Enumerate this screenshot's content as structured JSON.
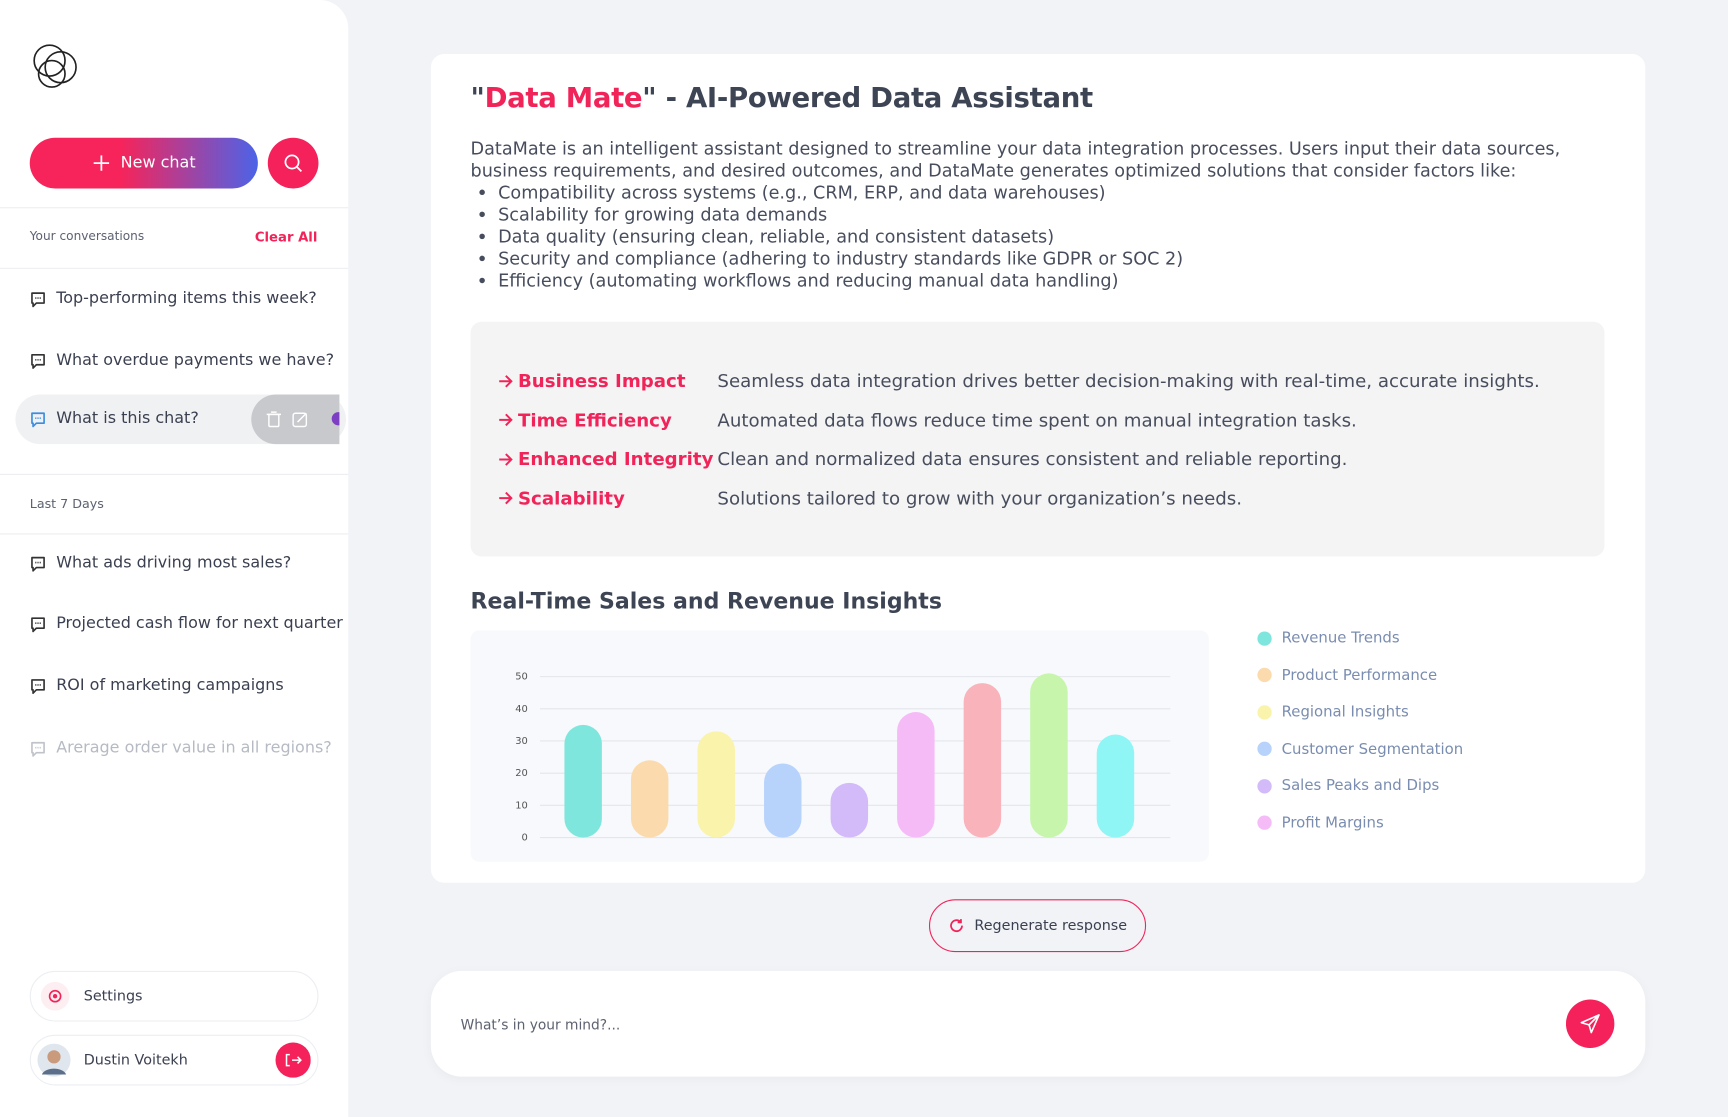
{
  "sidebar": {
    "new_chat": "New chat",
    "conversations_label": "Your conversations",
    "clear_all": "Clear All",
    "conversations": [
      "Top-performing items this week?",
      "What overdue payments we have?",
      "What is this chat?"
    ],
    "last7_label": "Last 7 Days",
    "last7": [
      "What ads driving most sales?",
      "Projected cash flow for next quarter",
      "ROI of marketing campaigns",
      "Arerage order value in all regions?"
    ],
    "settings": "Settings",
    "user": "Dustin Voitekh"
  },
  "response": {
    "title_prefix": "\"",
    "title_highlight": "Data Mate",
    "title_suffix": "\" - AI-Powered Data Assistant",
    "intro": "DataMate is an intelligent assistant designed to streamline your data integration processes. Users input their data sources, business requirements, and desired outcomes, and DataMate generates optimized solutions that consider factors like:",
    "bullets": [
      "Compatibility across systems (e.g., CRM, ERP, and data warehouses)",
      "Scalability for growing data demands",
      "Data quality (ensuring clean, reliable, and consistent datasets)",
      "Security and compliance (adhering to industry standards like GDPR or SOC 2)",
      "Efficiency (automating workflows and reducing manual data handling)"
    ],
    "impacts": [
      {
        "label": "Business Impact",
        "text": "Seamless data integration drives better decision-making with real-time, accurate insights."
      },
      {
        "label": "Time Efficiency",
        "text": "Automated data flows reduce time spent on manual integration tasks."
      },
      {
        "label": "Enhanced Integrity",
        "text": "Clean and normalized data ensures consistent and reliable reporting."
      },
      {
        "label": "Scalability",
        "text": "Solutions tailored to grow with your organization’s needs."
      }
    ]
  },
  "chart_data": {
    "type": "bar",
    "title": "Real-Time Sales and Revenue Insights",
    "categories": [
      null,
      null,
      null,
      null,
      null,
      null,
      null,
      null,
      null
    ],
    "values": [
      35,
      24,
      33,
      23,
      17,
      39,
      48,
      51,
      32
    ],
    "colors": [
      "#7fe6dd",
      "#fbdbad",
      "#f9f3ab",
      "#b7d3fb",
      "#d3baf8",
      "#f5bbf7",
      "#f8b3bb",
      "#c6f5ab",
      "#8ff5f5"
    ],
    "ylim": [
      0,
      50
    ],
    "yticks": [
      0,
      10,
      20,
      30,
      40,
      50
    ],
    "grid": true,
    "legend": [
      {
        "name": "Revenue Trends",
        "color": "#7fe6dd"
      },
      {
        "name": "Product Performance",
        "color": "#fbdbad"
      },
      {
        "name": "Regional Insights",
        "color": "#f9f3ab"
      },
      {
        "name": "Customer Segmentation",
        "color": "#b7d3fb"
      },
      {
        "name": "Sales Peaks and Dips",
        "color": "#d3baf8"
      },
      {
        "name": "Profit Margins",
        "color": "#f5bbf7"
      }
    ]
  },
  "footer": {
    "regenerate": "Regenerate response",
    "placeholder": "What’s in your mind?..."
  }
}
